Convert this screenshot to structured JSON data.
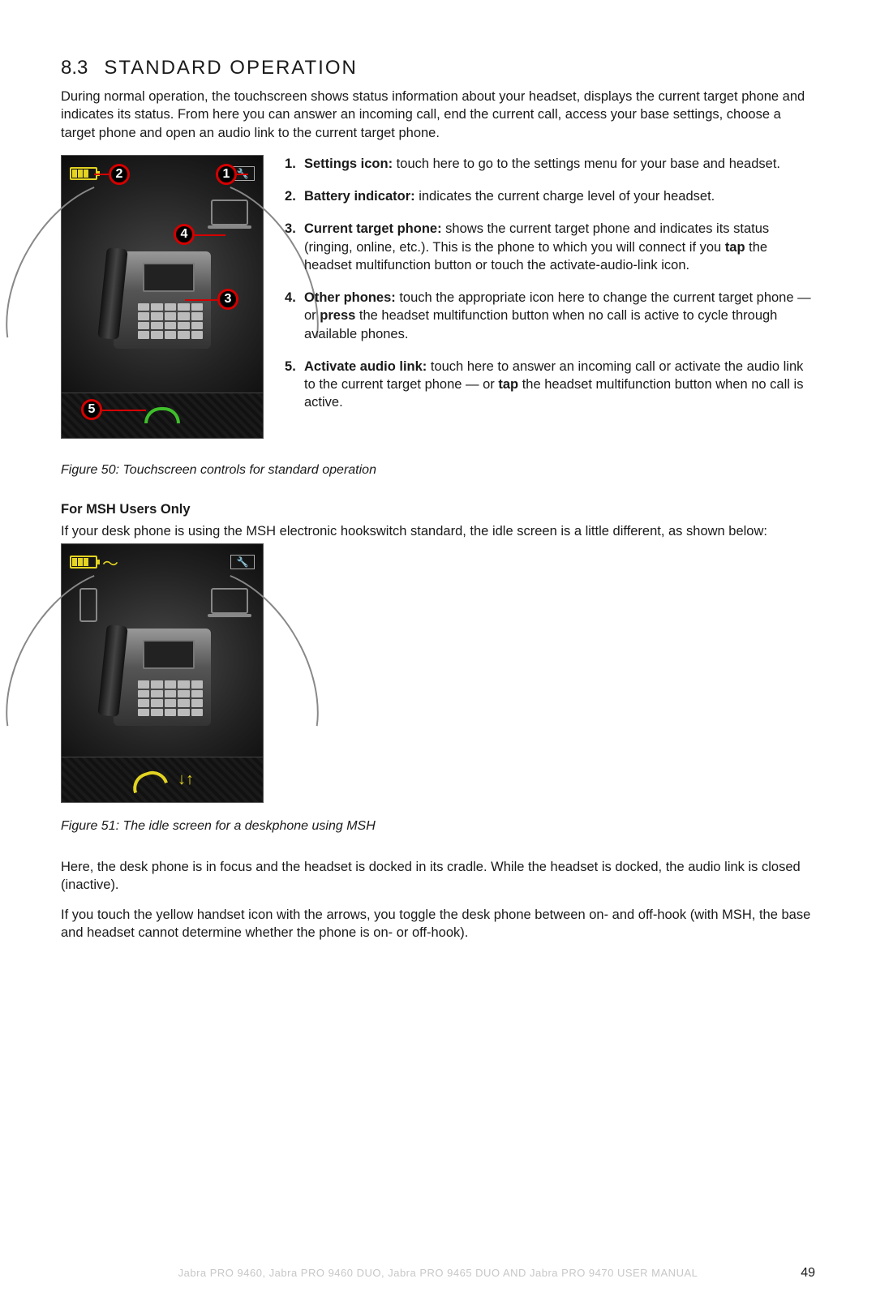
{
  "section": {
    "number": "8.3",
    "title": "STANDARD OPERATION"
  },
  "intro": "During normal operation, the touchscreen shows status information about your headset, displays the current target phone and indicates its status. From here you can answer an incoming call, end the current call, access your base settings, choose a target phone and open an audio link to the current target phone.",
  "features": [
    {
      "label": "Settings icon:",
      "text": " touch here to go to the settings menu for your base and headset."
    },
    {
      "label": "Battery indicator:",
      "text": " indicates the current charge level of your headset."
    },
    {
      "label": "Current target phone:",
      "text_parts": [
        " shows the current target phone and indicates its status (ringing, online, etc.). This is the phone to which you will connect if you ",
        {
          "b": "tap"
        },
        " the headset multifunction button or touch the activate-audio-link icon."
      ]
    },
    {
      "label": "Other phones:",
      "text_parts": [
        " touch the appropriate icon here to change the current target phone — or ",
        {
          "b": "press"
        },
        " the headset multifunction button when no call is active to cycle through available phones."
      ]
    },
    {
      "label": "Activate audio link:",
      "text_parts": [
        " touch here to answer an incoming call or activate the audio link to the current target phone — or ",
        {
          "b": "tap"
        },
        " the headset multifunction button when no call is active."
      ]
    }
  ],
  "fig50_caption": "Figure 50:  Touchscreen controls for standard operation",
  "msh_head": "For MSH Users Only",
  "msh_intro": "If your desk phone is using the MSH electronic hookswitch standard, the idle screen is a little different, as shown below:",
  "fig51_caption": "Figure 51: The idle screen for a deskphone using MSH",
  "msh_p1": "Here, the desk phone is in focus and the headset is docked in its cradle. While the headset is docked, the audio link is closed (inactive).",
  "msh_p2": "If you touch the yellow handset icon with the arrows, you toggle the desk phone between on- and off-hook (with MSH, the base and headset cannot determine whether the phone is on- or off-hook).",
  "footer": "Jabra PRO 9460, Jabra PRO 9460 DUO, Jabra PRO 9465 DUO AND Jabra PRO 9470 USER MANUAL",
  "page": "49",
  "callouts": {
    "c1": "1",
    "c2": "2",
    "c3": "3",
    "c4": "4",
    "c5": "5"
  },
  "colors": {
    "accent_red": "#d40000",
    "accent_yellow": "#e4d421",
    "accent_green": "#3fbf2b",
    "footer_grey": "#c7c7c7"
  }
}
